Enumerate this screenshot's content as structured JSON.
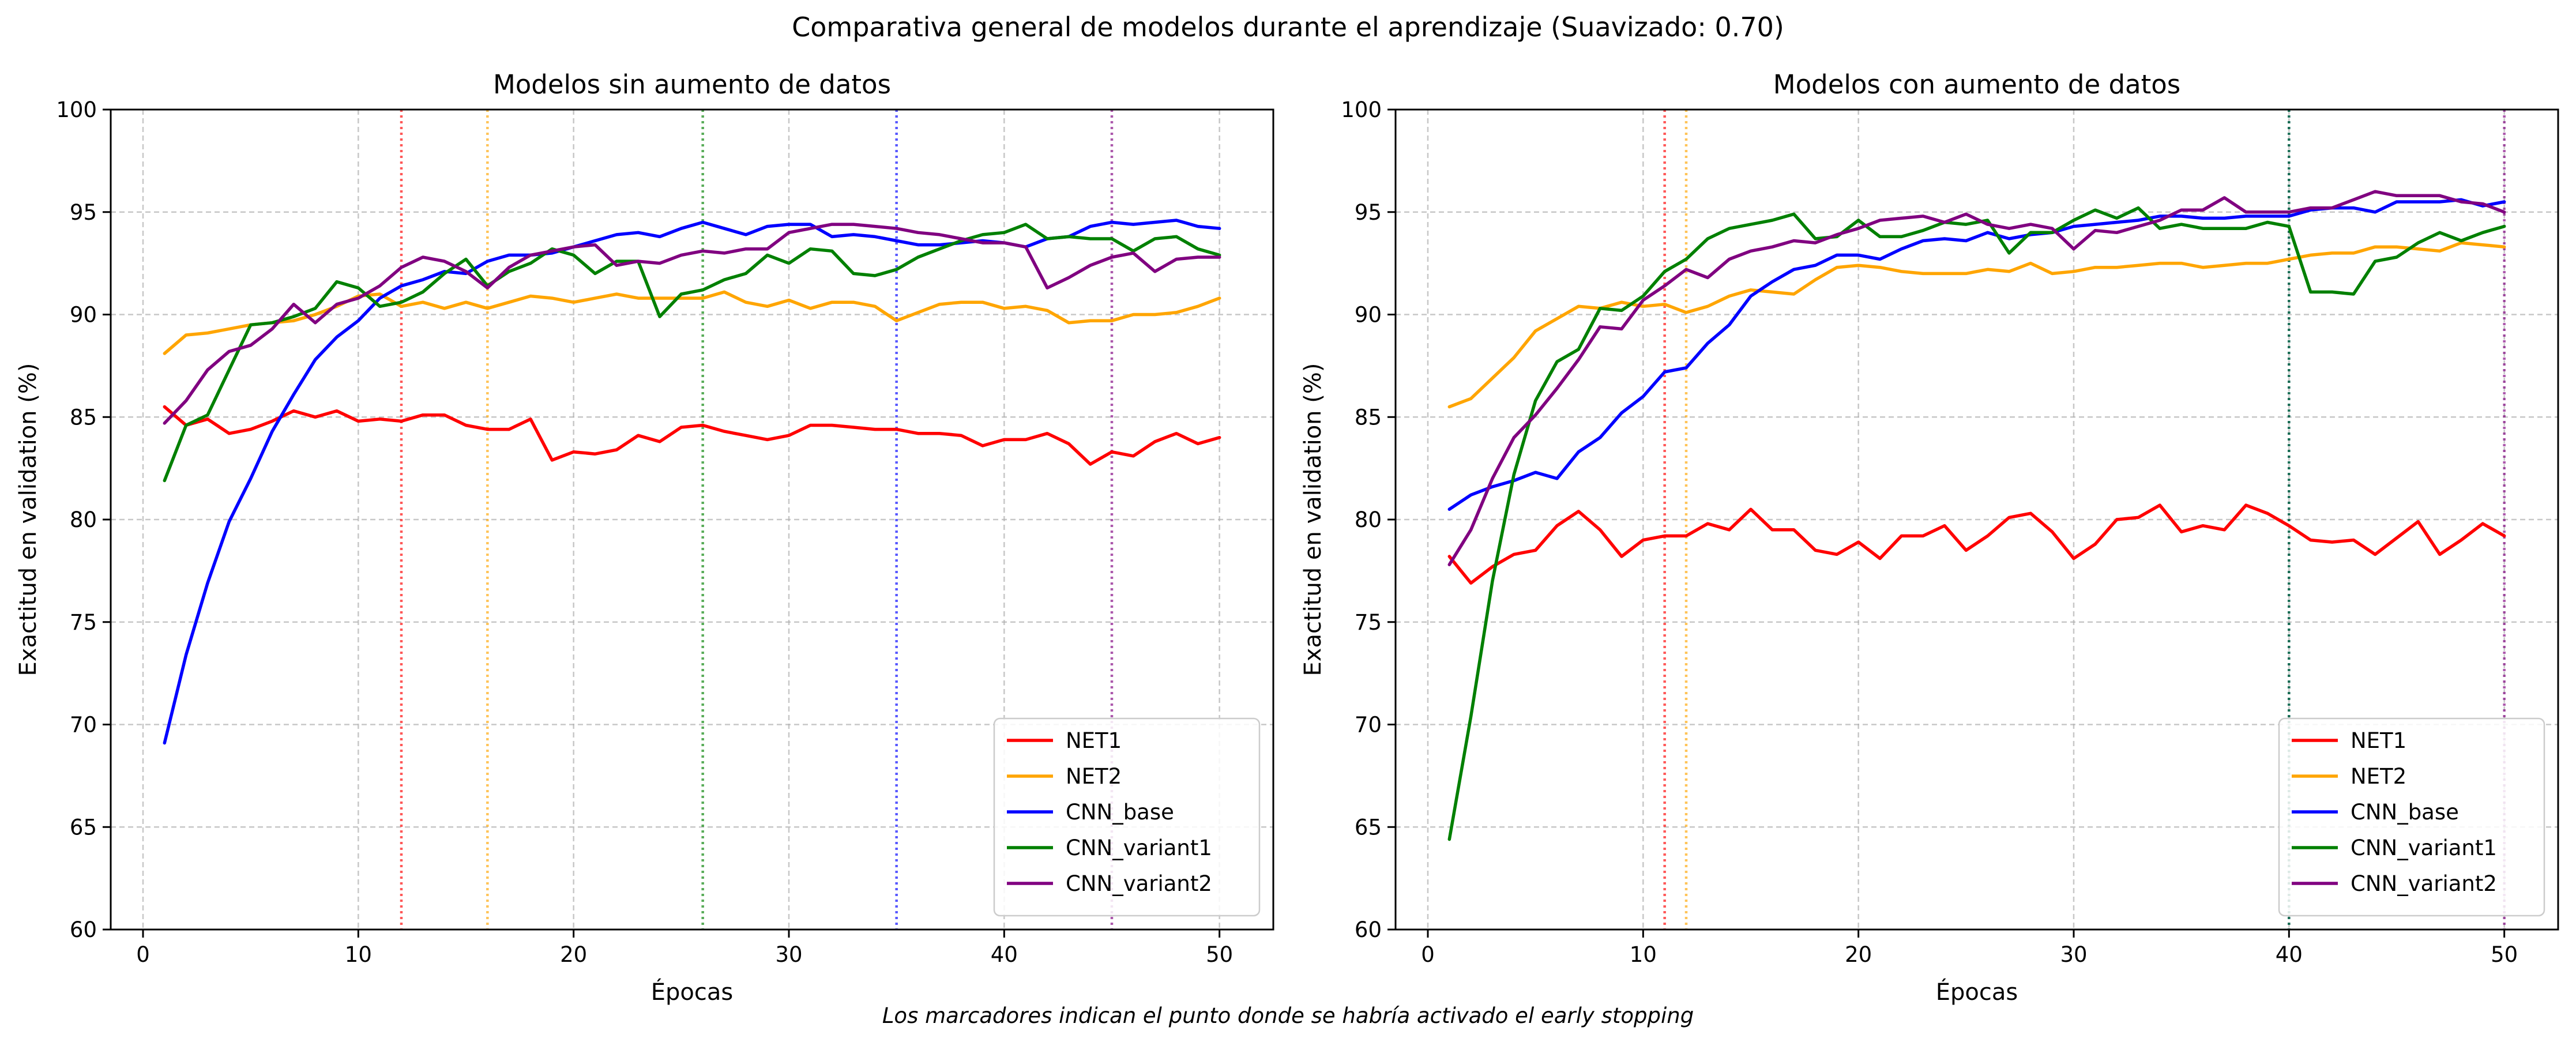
{
  "suptitle": "Comparativa general de modelos durante el aprendizaje (Suavizado: 0.70)",
  "footnote": "Los marcadores indican el punto donde se habría activado el early stopping",
  "colors": {
    "NET1": "#ff0000",
    "NET2": "#ffa500",
    "CNN_base": "#0000ff",
    "CNN_variant1": "#008000",
    "CNN_variant2": "#800080"
  },
  "chart_data": [
    {
      "type": "line",
      "title": "Modelos sin aumento de datos",
      "xlabel": "Épocas",
      "ylabel": "Exactitud en validation (%)",
      "xlim": [
        -1.5,
        52.5
      ],
      "ylim": [
        60,
        100
      ],
      "xticks": [
        0,
        10,
        20,
        30,
        40,
        50
      ],
      "yticks": [
        60,
        65,
        70,
        75,
        80,
        85,
        90,
        95,
        100
      ],
      "grid": true,
      "legend_position": "lower-right",
      "x": [
        1,
        2,
        3,
        4,
        5,
        6,
        7,
        8,
        9,
        10,
        11,
        12,
        13,
        14,
        15,
        16,
        17,
        18,
        19,
        20,
        21,
        22,
        23,
        24,
        25,
        26,
        27,
        28,
        29,
        30,
        31,
        32,
        33,
        34,
        35,
        36,
        37,
        38,
        39,
        40,
        41,
        42,
        43,
        44,
        45,
        46,
        47,
        48,
        49,
        50
      ],
      "series": [
        {
          "name": "NET1",
          "early_stop": 12,
          "values": [
            85.5,
            84.6,
            84.9,
            84.2,
            84.4,
            84.8,
            85.3,
            85.0,
            85.3,
            84.8,
            84.9,
            84.8,
            85.1,
            85.1,
            84.6,
            84.4,
            84.4,
            84.9,
            82.9,
            83.3,
            83.2,
            83.4,
            84.1,
            83.8,
            84.5,
            84.6,
            84.3,
            84.1,
            83.9,
            84.1,
            84.6,
            84.6,
            84.5,
            84.4,
            84.4,
            84.2,
            84.2,
            84.1,
            83.6,
            83.9,
            83.9,
            84.2,
            83.7,
            82.7,
            83.3,
            83.1,
            83.8,
            84.2,
            83.7,
            84.0
          ]
        },
        {
          "name": "NET2",
          "early_stop": 16,
          "values": [
            88.1,
            89.0,
            89.1,
            89.3,
            89.5,
            89.6,
            89.7,
            90.0,
            90.4,
            90.9,
            91.0,
            90.4,
            90.6,
            90.3,
            90.6,
            90.3,
            90.6,
            90.9,
            90.8,
            90.6,
            90.8,
            91.0,
            90.8,
            90.8,
            90.8,
            90.8,
            91.1,
            90.6,
            90.4,
            90.7,
            90.3,
            90.6,
            90.6,
            90.4,
            89.7,
            90.1,
            90.5,
            90.6,
            90.6,
            90.3,
            90.4,
            90.2,
            89.6,
            89.7,
            89.7,
            90.0,
            90.0,
            90.1,
            90.4,
            90.8
          ]
        },
        {
          "name": "CNN_base",
          "early_stop": 35,
          "values": [
            69.1,
            73.4,
            76.9,
            79.9,
            82.0,
            84.3,
            86.1,
            87.8,
            88.9,
            89.7,
            90.8,
            91.4,
            91.7,
            92.1,
            92.0,
            92.6,
            92.9,
            92.9,
            93.0,
            93.3,
            93.6,
            93.9,
            94.0,
            93.8,
            94.2,
            94.5,
            94.2,
            93.9,
            94.3,
            94.4,
            94.4,
            93.8,
            93.9,
            93.8,
            93.6,
            93.4,
            93.4,
            93.5,
            93.6,
            93.5,
            93.3,
            93.7,
            93.8,
            94.3,
            94.5,
            94.4,
            94.5,
            94.6,
            94.3,
            94.2
          ]
        },
        {
          "name": "CNN_variant1",
          "early_stop": 26,
          "values": [
            81.9,
            84.6,
            85.1,
            87.3,
            89.5,
            89.6,
            89.9,
            90.3,
            91.6,
            91.3,
            90.4,
            90.6,
            91.1,
            92.0,
            92.7,
            91.4,
            92.1,
            92.5,
            93.2,
            92.9,
            92.0,
            92.6,
            92.6,
            89.9,
            91.0,
            91.2,
            91.7,
            92.0,
            92.9,
            92.5,
            93.2,
            93.1,
            92.0,
            91.9,
            92.2,
            92.8,
            93.2,
            93.6,
            93.9,
            94.0,
            94.4,
            93.7,
            93.8,
            93.7,
            93.7,
            93.1,
            93.7,
            93.8,
            93.2,
            92.9
          ]
        },
        {
          "name": "CNN_variant2",
          "early_stop": 45,
          "values": [
            84.7,
            85.8,
            87.3,
            88.2,
            88.5,
            89.3,
            90.5,
            89.6,
            90.5,
            90.8,
            91.4,
            92.3,
            92.8,
            92.6,
            92.1,
            91.3,
            92.3,
            92.9,
            93.1,
            93.3,
            93.4,
            92.4,
            92.6,
            92.5,
            92.9,
            93.1,
            93.0,
            93.2,
            93.2,
            94.0,
            94.2,
            94.4,
            94.4,
            94.3,
            94.2,
            94.0,
            93.9,
            93.7,
            93.5,
            93.5,
            93.3,
            91.3,
            91.8,
            92.4,
            92.8,
            93.0,
            92.1,
            92.7,
            92.8,
            92.8
          ]
        }
      ]
    },
    {
      "type": "line",
      "title": "Modelos con aumento de datos",
      "xlabel": "Épocas",
      "ylabel": "Exactitud en validation (%)",
      "xlim": [
        -1.5,
        52.5
      ],
      "ylim": [
        60,
        100
      ],
      "xticks": [
        0,
        10,
        20,
        30,
        40,
        50
      ],
      "yticks": [
        60,
        65,
        70,
        75,
        80,
        85,
        90,
        95,
        100
      ],
      "grid": true,
      "legend_position": "lower-right",
      "x": [
        1,
        2,
        3,
        4,
        5,
        6,
        7,
        8,
        9,
        10,
        11,
        12,
        13,
        14,
        15,
        16,
        17,
        18,
        19,
        20,
        21,
        22,
        23,
        24,
        25,
        26,
        27,
        28,
        29,
        30,
        31,
        32,
        33,
        34,
        35,
        36,
        37,
        38,
        39,
        40,
        41,
        42,
        43,
        44,
        45,
        46,
        47,
        48,
        49,
        50
      ],
      "series": [
        {
          "name": "NET1",
          "early_stop": 11,
          "values": [
            78.2,
            76.9,
            77.7,
            78.3,
            78.5,
            79.7,
            80.4,
            79.5,
            78.2,
            79.0,
            79.2,
            79.2,
            79.8,
            79.5,
            80.5,
            79.5,
            79.5,
            78.5,
            78.3,
            78.9,
            78.1,
            79.2,
            79.2,
            79.7,
            78.5,
            79.2,
            80.1,
            80.3,
            79.4,
            78.1,
            78.8,
            80.0,
            80.1,
            80.7,
            79.4,
            79.7,
            79.5,
            80.7,
            80.3,
            79.7,
            79.0,
            78.9,
            79.0,
            78.3,
            79.1,
            79.9,
            78.3,
            79.0,
            79.8,
            79.2
          ]
        },
        {
          "name": "NET2",
          "early_stop": 12,
          "values": [
            85.5,
            85.9,
            86.9,
            87.9,
            89.2,
            89.8,
            90.4,
            90.3,
            90.6,
            90.4,
            90.5,
            90.1,
            90.4,
            90.9,
            91.2,
            91.1,
            91.0,
            91.7,
            92.3,
            92.4,
            92.3,
            92.1,
            92.0,
            92.0,
            92.0,
            92.2,
            92.1,
            92.5,
            92.0,
            92.1,
            92.3,
            92.3,
            92.4,
            92.5,
            92.5,
            92.3,
            92.4,
            92.5,
            92.5,
            92.7,
            92.9,
            93.0,
            93.0,
            93.3,
            93.3,
            93.2,
            93.1,
            93.5,
            93.4,
            93.3
          ]
        },
        {
          "name": "CNN_base",
          "early_stop": 40,
          "values": [
            80.5,
            81.2,
            81.6,
            81.9,
            82.3,
            82.0,
            83.3,
            84.0,
            85.2,
            86.0,
            87.2,
            87.4,
            88.6,
            89.5,
            90.9,
            91.6,
            92.2,
            92.4,
            92.9,
            92.9,
            92.7,
            93.2,
            93.6,
            93.7,
            93.6,
            94.0,
            93.7,
            93.9,
            94.0,
            94.3,
            94.4,
            94.5,
            94.6,
            94.8,
            94.8,
            94.7,
            94.7,
            94.8,
            94.8,
            94.8,
            95.1,
            95.2,
            95.2,
            95.0,
            95.5,
            95.5,
            95.5,
            95.6,
            95.3,
            95.5
          ]
        },
        {
          "name": "CNN_variant1",
          "early_stop": 40,
          "values": [
            64.4,
            70.4,
            77.0,
            82.2,
            85.8,
            87.7,
            88.3,
            90.3,
            90.2,
            90.9,
            92.1,
            92.7,
            93.7,
            94.2,
            94.4,
            94.6,
            94.9,
            93.7,
            93.8,
            94.6,
            93.8,
            93.8,
            94.1,
            94.5,
            94.4,
            94.6,
            93.0,
            94.0,
            94.0,
            94.6,
            95.1,
            94.7,
            95.2,
            94.2,
            94.4,
            94.2,
            94.2,
            94.2,
            94.5,
            94.3,
            91.1,
            91.1,
            91.0,
            92.6,
            92.8,
            93.5,
            94.0,
            93.6,
            94.0,
            94.3
          ]
        },
        {
          "name": "CNN_variant2",
          "early_stop": 50,
          "values": [
            77.8,
            79.5,
            82.0,
            84.0,
            85.1,
            86.4,
            87.8,
            89.4,
            89.3,
            90.7,
            91.4,
            92.2,
            91.8,
            92.7,
            93.1,
            93.3,
            93.6,
            93.5,
            93.9,
            94.2,
            94.6,
            94.7,
            94.8,
            94.5,
            94.9,
            94.4,
            94.2,
            94.4,
            94.2,
            93.2,
            94.1,
            94.0,
            94.3,
            94.6,
            95.1,
            95.1,
            95.7,
            95.0,
            95.0,
            95.0,
            95.2,
            95.2,
            95.6,
            96.0,
            95.8,
            95.8,
            95.8,
            95.5,
            95.4,
            95.0
          ]
        }
      ]
    }
  ]
}
